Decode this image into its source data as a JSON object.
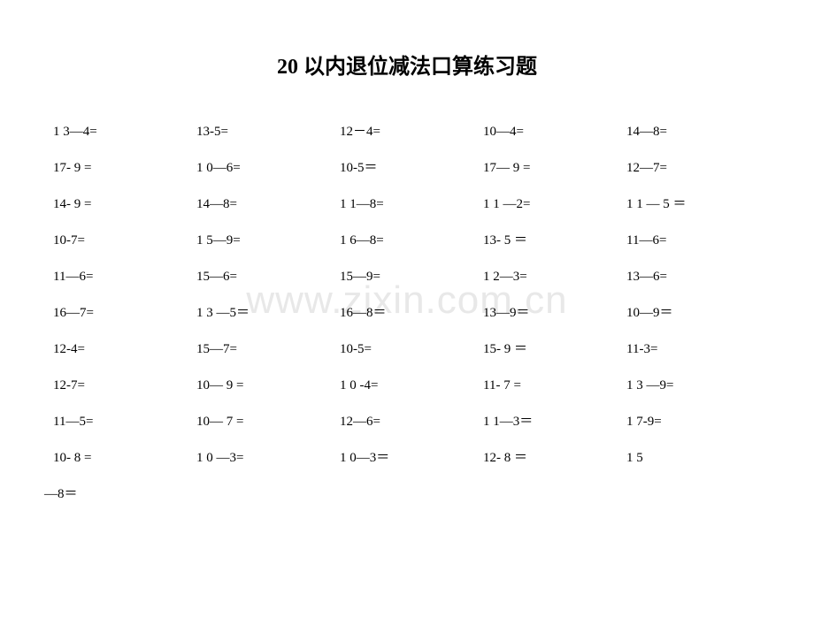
{
  "title": "20 以内退位减法口算练习题",
  "watermark": "www.zixin.com.cn",
  "rows": [
    {
      "c1": "1 3—4=",
      "c2": "13-5=",
      "c3": "12－4=",
      "c4": "10—4=",
      "c5": "14—8="
    },
    {
      "c1": "17- 9 =",
      "c2": "1 0—6=",
      "c3": "10-5＝",
      "c4": "17— 9 =",
      "c5": "12—7="
    },
    {
      "c1": "14- 9 =",
      "c2": "14—8=",
      "c3": "1 1—8=",
      "c4": "1 1 —2=",
      "c5": "1 1 — 5 ＝"
    },
    {
      "c1": "10-7=",
      "c2": "1 5—9=",
      "c3": "1 6—8=",
      "c4": "13- 5 ＝",
      "c5": "11—6="
    },
    {
      "c1": "11—6=",
      "c2": "15—6=",
      "c3": "15—9=",
      "c4": "1 2—3=",
      "c5": "13—6="
    },
    {
      "c1": "16—7=",
      "c2": "1 3 —5＝",
      "c3": "16—8＝",
      "c4": "13—9＝",
      "c5": "10—9＝"
    },
    {
      "c1": "12-4=",
      "c2": "15—7=",
      "c3": "10-5=",
      "c4": "15- 9 ＝",
      "c5": "11-3="
    },
    {
      "c1": "12-7=",
      "c2": "10— 9 =",
      "c3": "1  0 -4=",
      "c4": "11- 7 =",
      "c5": "1 3 —9="
    },
    {
      "c1": "11—5=",
      "c2": "10— 7 =",
      "c3": "12—6=",
      "c4": "1 1—3＝",
      "c5": "1 7-9="
    },
    {
      "c1": "10- 8 =",
      "c2": "1 0 —3=",
      "c3": "1 0—3＝",
      "c4": "12- 8 ＝",
      "c5": "1 5"
    }
  ],
  "lastLine": "—8＝",
  "styling": {
    "background_color": "#ffffff",
    "text_color": "#000000",
    "title_fontsize": 24,
    "body_fontsize": 15,
    "watermark_color": "#e8e8e8",
    "watermark_fontsize": 44,
    "font_family": "SimSun"
  }
}
